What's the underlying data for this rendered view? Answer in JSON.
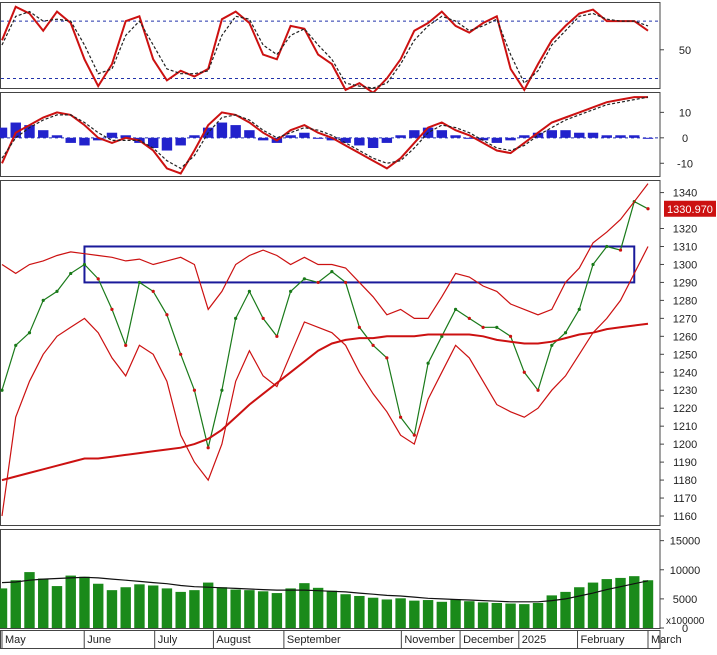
{
  "chart_data": [
    {
      "panel": "stochastic",
      "type": "line",
      "y_ticks": [
        50
      ],
      "reference_lines": [
        80,
        20
      ],
      "ylim": [
        10,
        100
      ],
      "series": [
        {
          "role": "main",
          "color": "#cc1111",
          "values": [
            60,
            95,
            88,
            70,
            90,
            78,
            40,
            12,
            35,
            80,
            85,
            40,
            18,
            28,
            22,
            30,
            82,
            90,
            78,
            45,
            40,
            75,
            72,
            45,
            35,
            8,
            15,
            5,
            20,
            40,
            70,
            78,
            90,
            75,
            68,
            78,
            85,
            30,
            8,
            35,
            60,
            75,
            88,
            92,
            80,
            80,
            80,
            70
          ]
        },
        {
          "role": "signal",
          "color": "#222222",
          "values": [
            55,
            85,
            90,
            80,
            82,
            80,
            55,
            25,
            30,
            65,
            80,
            55,
            30,
            25,
            25,
            28,
            65,
            85,
            82,
            55,
            45,
            65,
            72,
            55,
            40,
            15,
            12,
            10,
            15,
            35,
            60,
            75,
            85,
            80,
            70,
            75,
            82,
            45,
            15,
            28,
            55,
            70,
            85,
            88,
            82,
            80,
            80,
            75
          ]
        }
      ]
    },
    {
      "panel": "oscillator",
      "type": "bar",
      "y_ticks": [
        10,
        0,
        -10
      ],
      "reference_lines": [
        0
      ],
      "ylim": [
        -15,
        18
      ],
      "series": [
        {
          "role": "histogram",
          "color": "#2222cc",
          "values": [
            4,
            6,
            5,
            3,
            1,
            -2,
            -3,
            -1,
            2,
            1,
            -2,
            -4,
            -5,
            -3,
            1,
            4,
            6,
            5,
            3,
            -1,
            -2,
            1,
            2,
            0,
            -1,
            -2,
            -3,
            -4,
            -2,
            1,
            3,
            4,
            3,
            1,
            0,
            -1,
            -2,
            -1,
            1,
            2,
            3,
            3,
            2,
            2,
            1,
            1,
            1,
            0
          ]
        },
        {
          "role": "line",
          "color": "#cc1111",
          "values": [
            -10,
            2,
            5,
            8,
            10,
            9,
            5,
            0,
            -2,
            0,
            -1,
            -5,
            -12,
            -14,
            -5,
            5,
            10,
            9,
            6,
            2,
            -1,
            3,
            5,
            2,
            0,
            -3,
            -6,
            -9,
            -12,
            -8,
            -2,
            4,
            6,
            3,
            1,
            -2,
            -5,
            -6,
            -2,
            2,
            6,
            8,
            10,
            12,
            14,
            15,
            16,
            16
          ]
        },
        {
          "role": "signal",
          "color": "#222222",
          "values": [
            -8,
            0,
            4,
            7,
            9,
            9,
            6,
            2,
            -1,
            -1,
            -1,
            -4,
            -9,
            -12,
            -7,
            2,
            8,
            9,
            7,
            3,
            0,
            2,
            4,
            3,
            1,
            -2,
            -5,
            -8,
            -10,
            -9,
            -4,
            2,
            5,
            4,
            2,
            -1,
            -4,
            -5,
            -3,
            1,
            4,
            7,
            9,
            11,
            13,
            14,
            15,
            16
          ]
        }
      ]
    },
    {
      "panel": "price",
      "type": "line",
      "ylim": [
        1155,
        1347
      ],
      "y_ticks": [
        1340,
        1320,
        1310,
        1300,
        1290,
        1280,
        1270,
        1260,
        1250,
        1240,
        1230,
        1220,
        1210,
        1200,
        1190,
        1180,
        1170,
        1160
      ],
      "last_price_label": "1330.970",
      "highlight_box": {
        "x_start_index": 6,
        "x_end_index": 46,
        "y_low": 1290,
        "y_high": 1310
      },
      "series": [
        {
          "role": "close",
          "color": "#1a7a1a",
          "values": [
            1230,
            1255,
            1262,
            1280,
            1285,
            1295,
            1300,
            1292,
            1275,
            1255,
            1290,
            1285,
            1272,
            1250,
            1230,
            1198,
            1230,
            1270,
            1285,
            1270,
            1260,
            1285,
            1292,
            1290,
            1296,
            1290,
            1265,
            1255,
            1248,
            1215,
            1205,
            1245,
            1260,
            1275,
            1270,
            1265,
            1265,
            1260,
            1240,
            1230,
            1255,
            1262,
            1275,
            1300,
            1310,
            1308,
            1335,
            1331
          ]
        },
        {
          "role": "ma",
          "color": "#cc1111",
          "values": [
            1180,
            1182,
            1184,
            1186,
            1188,
            1190,
            1192,
            1192,
            1193,
            1194,
            1195,
            1196,
            1197,
            1198,
            1200,
            1203,
            1208,
            1215,
            1222,
            1228,
            1234,
            1240,
            1246,
            1252,
            1256,
            1258,
            1259,
            1259,
            1260,
            1260,
            1260,
            1261,
            1261,
            1261,
            1261,
            1260,
            1258,
            1257,
            1256,
            1256,
            1257,
            1259,
            1261,
            1262,
            1264,
            1265,
            1266,
            1267
          ]
        },
        {
          "role": "upper_band",
          "color": "#cc1111",
          "values": [
            1300,
            1295,
            1300,
            1302,
            1305,
            1307,
            1306,
            1305,
            1304,
            1302,
            1303,
            1300,
            1302,
            1304,
            1300,
            1275,
            1285,
            1300,
            1305,
            1308,
            1305,
            1300,
            1304,
            1300,
            1300,
            1298,
            1290,
            1282,
            1272,
            1275,
            1270,
            1270,
            1282,
            1295,
            1293,
            1288,
            1285,
            1278,
            1275,
            1272,
            1275,
            1290,
            1298,
            1312,
            1318,
            1325,
            1335,
            1345
          ]
        },
        {
          "role": "lower_band",
          "color": "#cc1111",
          "values": [
            1160,
            1215,
            1235,
            1250,
            1260,
            1265,
            1270,
            1262,
            1248,
            1238,
            1255,
            1250,
            1235,
            1205,
            1190,
            1180,
            1200,
            1235,
            1252,
            1238,
            1232,
            1250,
            1268,
            1265,
            1262,
            1255,
            1240,
            1228,
            1218,
            1205,
            1200,
            1225,
            1240,
            1255,
            1248,
            1235,
            1222,
            1218,
            1215,
            1220,
            1230,
            1238,
            1250,
            1262,
            1270,
            1280,
            1295,
            1310
          ]
        }
      ]
    },
    {
      "panel": "volume",
      "type": "bar",
      "y_ticks": [
        15000,
        10000,
        5000,
        0
      ],
      "unit_label": "x100000",
      "ylim": [
        0,
        17000
      ],
      "series": [
        {
          "role": "volume",
          "color": "#1a8a1a",
          "values": [
            6800,
            8200,
            9600,
            8500,
            7200,
            9000,
            8800,
            7600,
            6500,
            7000,
            7500,
            7300,
            6800,
            6200,
            6500,
            7800,
            7000,
            6600,
            6500,
            6300,
            6000,
            6800,
            7700,
            6900,
            6400,
            5800,
            5500,
            5200,
            4900,
            5100,
            4700,
            4800,
            4500,
            4900,
            4600,
            4400,
            4300,
            4200,
            4100,
            4300,
            5600,
            6200,
            7000,
            7800,
            8400,
            8600,
            8900,
            8200
          ]
        },
        {
          "role": "volume_ma",
          "color": "#111111",
          "values": [
            7800,
            7900,
            8200,
            8400,
            8500,
            8600,
            8700,
            8600,
            8400,
            8200,
            8000,
            7800,
            7600,
            7300,
            7100,
            7000,
            6900,
            6800,
            6700,
            6600,
            6500,
            6500,
            6500,
            6400,
            6300,
            6200,
            6000,
            5800,
            5600,
            5500,
            5300,
            5100,
            5000,
            4900,
            4800,
            4700,
            4600,
            4500,
            4500,
            4500,
            4700,
            5000,
            5500,
            6000,
            6600,
            7100,
            7600,
            8100
          ]
        }
      ]
    }
  ],
  "x_axis": {
    "labels": [
      {
        "text": "May",
        "index": 0
      },
      {
        "text": "June",
        "index": 7
      },
      {
        "text": "July",
        "index": 13
      },
      {
        "text": "August",
        "index": 18
      },
      {
        "text": "September",
        "index": 24
      },
      {
        "text": "November",
        "index": 34
      },
      {
        "text": "December",
        "index": 39
      },
      {
        "text": "2025",
        "index": 44
      },
      {
        "text": "February",
        "index": 49
      },
      {
        "text": "March",
        "index": 55
      }
    ],
    "index_count": 56
  }
}
